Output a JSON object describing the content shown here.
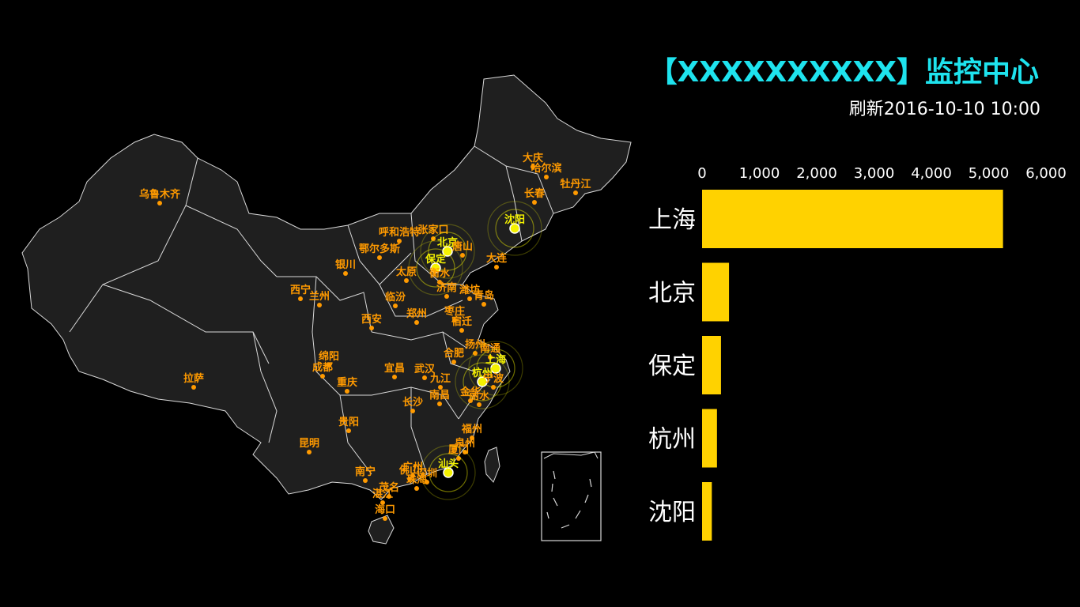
{
  "header": {
    "title": "【XXXXXXXXXX】监控中心",
    "refresh": "刷新2016-10-10 10:00"
  },
  "colors": {
    "background": "#000000",
    "title": "#1ee3ee",
    "land": "#1f1f1f",
    "border": "#d9d9d9",
    "city": "#ff9a00",
    "highlight": "#f5f200",
    "bar": "#ffd200"
  },
  "map": {
    "cities": [
      {
        "name": "乌鲁木齐"
      },
      {
        "name": "拉萨"
      },
      {
        "name": "西宁"
      },
      {
        "name": "兰州"
      },
      {
        "name": "银川"
      },
      {
        "name": "呼和浩特"
      },
      {
        "name": "张家口"
      },
      {
        "name": "鄂尔多斯"
      },
      {
        "name": "北京"
      },
      {
        "name": "唐山"
      },
      {
        "name": "保定"
      },
      {
        "name": "衡水"
      },
      {
        "name": "太原"
      },
      {
        "name": "临汾"
      },
      {
        "name": "大庆"
      },
      {
        "name": "哈尔滨"
      },
      {
        "name": "牡丹江"
      },
      {
        "name": "长春"
      },
      {
        "name": "沈阳"
      },
      {
        "name": "大连"
      },
      {
        "name": "济南"
      },
      {
        "name": "潍坊"
      },
      {
        "name": "青岛"
      },
      {
        "name": "枣庄"
      },
      {
        "name": "西安"
      },
      {
        "name": "郑州"
      },
      {
        "name": "宿迁"
      },
      {
        "name": "扬州"
      },
      {
        "name": "合肥"
      },
      {
        "name": "南通"
      },
      {
        "name": "上海"
      },
      {
        "name": "杭州"
      },
      {
        "name": "宁波"
      },
      {
        "name": "金华"
      },
      {
        "name": "丽水"
      },
      {
        "name": "九江"
      },
      {
        "name": "南昌"
      },
      {
        "name": "武汉"
      },
      {
        "name": "宜昌"
      },
      {
        "name": "长沙"
      },
      {
        "name": "成都"
      },
      {
        "name": "绵阳"
      },
      {
        "name": "重庆"
      },
      {
        "name": "贵阳"
      },
      {
        "name": "昆明"
      },
      {
        "name": "南宁"
      },
      {
        "name": "湛江"
      },
      {
        "name": "茂名"
      },
      {
        "name": "海口"
      },
      {
        "name": "福州"
      },
      {
        "name": "泉州"
      },
      {
        "name": "厦门"
      },
      {
        "name": "汕头"
      },
      {
        "name": "广州"
      },
      {
        "name": "佛山"
      },
      {
        "name": "深圳"
      },
      {
        "name": "珠海"
      }
    ],
    "highlighted": [
      "上海",
      "北京",
      "保定",
      "杭州",
      "沈阳",
      "汕头"
    ]
  },
  "chart_data": {
    "type": "bar",
    "orientation": "horizontal",
    "categories": [
      "上海",
      "北京",
      "保定",
      "杭州",
      "沈阳"
    ],
    "values": [
      5250,
      470,
      330,
      260,
      170
    ],
    "xlim": [
      0,
      6000
    ],
    "xticks": [
      "0",
      "1,000",
      "2,000",
      "3,000",
      "4,000",
      "5,000",
      "6,000"
    ],
    "grid": false
  }
}
